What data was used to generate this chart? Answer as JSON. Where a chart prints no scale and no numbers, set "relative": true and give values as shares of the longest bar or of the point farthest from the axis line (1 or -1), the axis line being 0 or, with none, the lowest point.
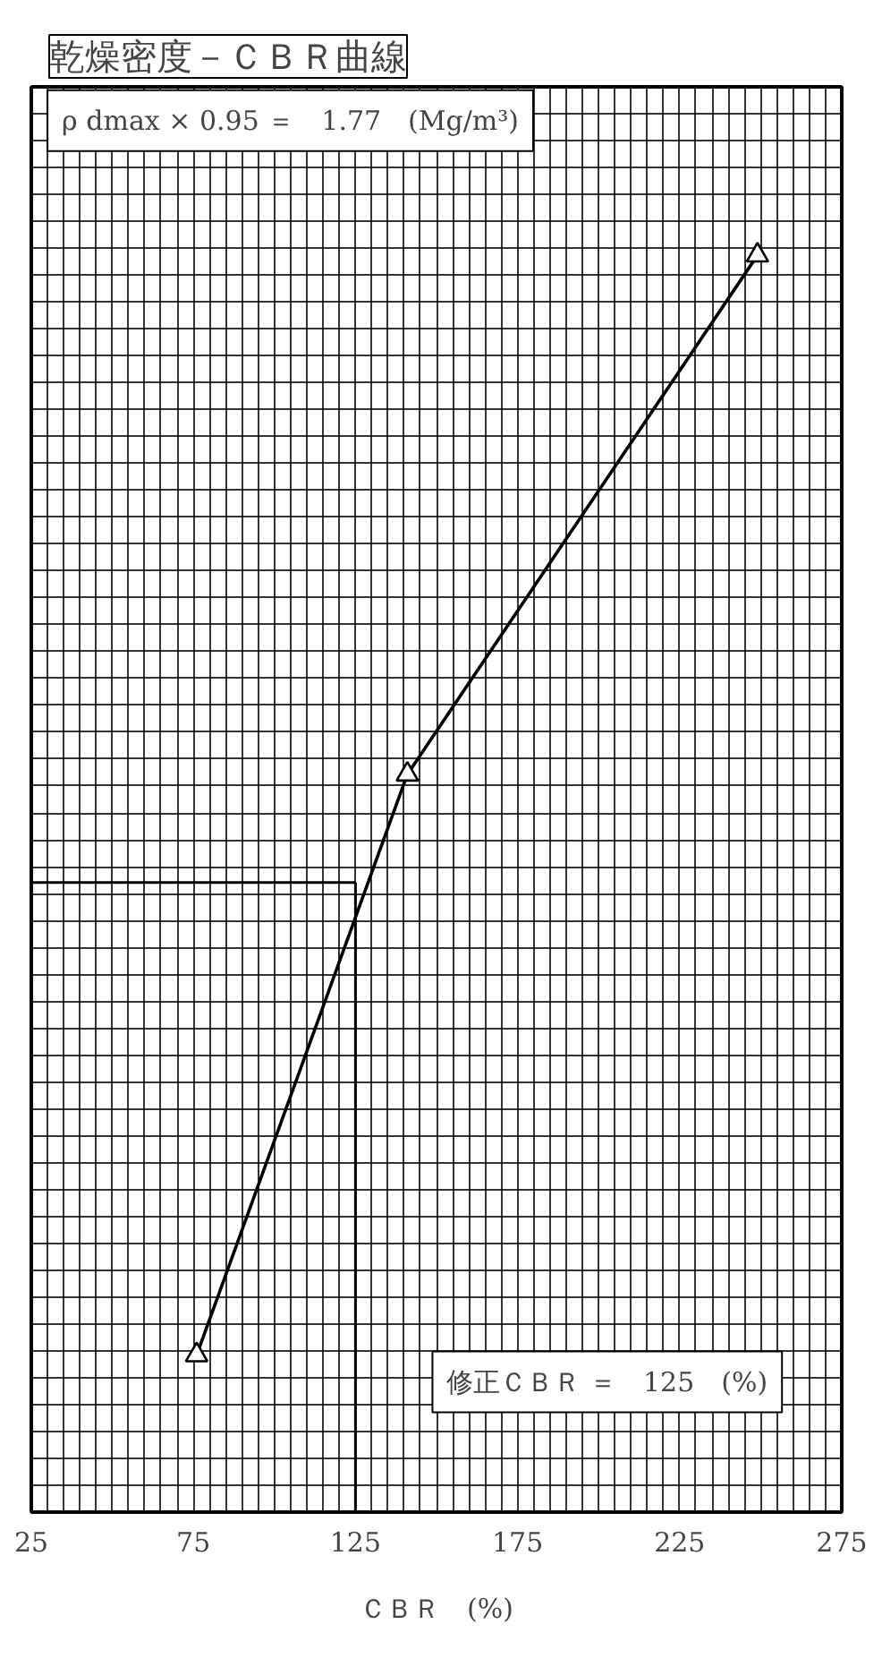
{
  "chart_data": {
    "type": "line",
    "title": "乾燥密度－ＣＢＲ曲線",
    "xlabel": "ＣＢＲ　(%)",
    "relative": true,
    "x": [
      76,
      141,
      249
    ],
    "values": [
      0.125,
      0.587,
      1
    ],
    "xlim": [
      25,
      275
    ],
    "xticks": [
      25,
      75,
      125,
      175,
      225,
      275
    ],
    "marker": "triangle",
    "line_style": "solid",
    "grid": true,
    "ref_lines": [
      {
        "axis": "x",
        "value": 125
      },
      {
        "axis": "y",
        "value": 0.501
      }
    ],
    "annotations": [
      "ρ dmax × 0.95 ＝　1.77　(Mg/m³)",
      "修正ＣＢＲ ＝　125　(%)"
    ]
  }
}
